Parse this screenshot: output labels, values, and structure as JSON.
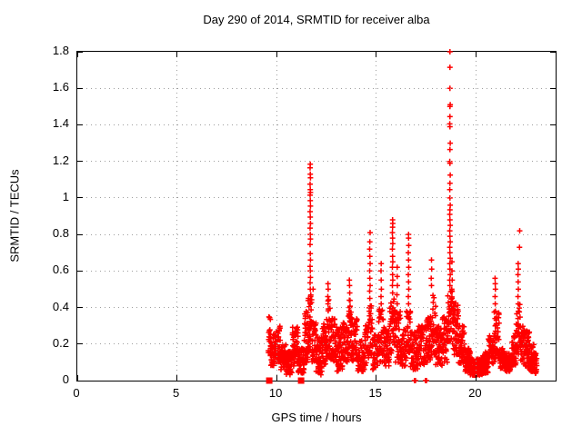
{
  "figure": {
    "background_color": "#ffffff",
    "axis_color": "#000000",
    "grid_color": "#9e9e9e",
    "text_color": "#000000"
  },
  "chart_data": {
    "type": "scatter",
    "title": "Day 290 of 2014, SRMTID for receiver alba",
    "xlabel": "GPS time / hours",
    "ylabel": "SRMTID / TECUs",
    "xlim": [
      0,
      24
    ],
    "ylim": [
      0,
      1.8
    ],
    "grid": true,
    "legend_visible": false,
    "xticks": {
      "values": [
        0,
        5,
        10,
        15,
        20
      ],
      "labels": [
        "0",
        "5",
        "10",
        "15",
        "20"
      ]
    },
    "yticks": {
      "values": [
        0,
        0.2,
        0.4,
        0.6,
        0.8,
        1,
        1.2,
        1.4,
        1.6,
        1.8
      ],
      "labels": [
        "0",
        "0.2",
        "0.4",
        "0.6",
        "0.8",
        "1",
        "1.2",
        "1.4",
        "1.6",
        "1.8"
      ]
    },
    "series": [
      {
        "name": "srmtid",
        "marker": "plus",
        "color": "#ff0000",
        "x_extent": [
          9.58,
          23.06
        ],
        "cloud_segments": [
          [
            9.58,
            9.7,
            0.14,
            0.35,
            14
          ],
          [
            9.68,
            9.92,
            0.08,
            0.27,
            40
          ],
          [
            9.92,
            10.18,
            0.1,
            0.3,
            40
          ],
          [
            10.18,
            10.48,
            0.06,
            0.2,
            42
          ],
          [
            10.48,
            10.78,
            0.03,
            0.16,
            42
          ],
          [
            10.78,
            11.08,
            0.08,
            0.3,
            48
          ],
          [
            11.08,
            11.38,
            0.04,
            0.18,
            42
          ],
          [
            11.38,
            11.58,
            0.1,
            0.4,
            36
          ],
          [
            11.58,
            11.76,
            0.15,
            0.48,
            34
          ],
          [
            11.76,
            11.98,
            0.1,
            0.32,
            32
          ],
          [
            11.98,
            12.28,
            0.03,
            0.24,
            46
          ],
          [
            12.28,
            12.52,
            0.08,
            0.34,
            40
          ],
          [
            12.52,
            12.72,
            0.12,
            0.45,
            34
          ],
          [
            12.72,
            13.02,
            0.1,
            0.34,
            46
          ],
          [
            13.02,
            13.32,
            0.05,
            0.3,
            46
          ],
          [
            13.32,
            13.58,
            0.1,
            0.34,
            40
          ],
          [
            13.58,
            13.78,
            0.12,
            0.45,
            34
          ],
          [
            13.78,
            14.08,
            0.1,
            0.34,
            46
          ],
          [
            14.08,
            14.42,
            0.05,
            0.22,
            50
          ],
          [
            14.42,
            14.62,
            0.08,
            0.3,
            30
          ],
          [
            14.62,
            14.82,
            0.14,
            0.42,
            30
          ],
          [
            14.82,
            15.12,
            0.06,
            0.25,
            46
          ],
          [
            15.12,
            15.38,
            0.1,
            0.4,
            36
          ],
          [
            15.38,
            15.68,
            0.08,
            0.3,
            42
          ],
          [
            15.68,
            15.96,
            0.14,
            0.45,
            40
          ],
          [
            15.96,
            16.22,
            0.1,
            0.38,
            36
          ],
          [
            16.22,
            16.52,
            0.08,
            0.28,
            42
          ],
          [
            16.52,
            16.72,
            0.14,
            0.4,
            30
          ],
          [
            16.72,
            17.12,
            0.06,
            0.28,
            52
          ],
          [
            17.12,
            17.48,
            0.08,
            0.3,
            46
          ],
          [
            17.48,
            17.72,
            0.1,
            0.35,
            36
          ],
          [
            17.72,
            17.98,
            0.14,
            0.48,
            40
          ],
          [
            17.98,
            18.32,
            0.08,
            0.3,
            50
          ],
          [
            18.32,
            18.58,
            0.1,
            0.35,
            36
          ],
          [
            18.58,
            18.82,
            0.2,
            0.5,
            36
          ],
          [
            18.82,
            19.12,
            0.14,
            0.45,
            46
          ],
          [
            19.12,
            19.42,
            0.09,
            0.3,
            46
          ],
          [
            19.42,
            19.72,
            0.05,
            0.18,
            50
          ],
          [
            19.72,
            20.32,
            0.03,
            0.12,
            115
          ],
          [
            20.32,
            20.62,
            0.04,
            0.16,
            60
          ],
          [
            20.62,
            20.92,
            0.07,
            0.25,
            46
          ],
          [
            20.92,
            21.18,
            0.12,
            0.38,
            36
          ],
          [
            21.18,
            21.48,
            0.06,
            0.18,
            46
          ],
          [
            21.48,
            21.78,
            0.05,
            0.15,
            46
          ],
          [
            21.78,
            22.02,
            0.08,
            0.26,
            40
          ],
          [
            22.02,
            22.22,
            0.14,
            0.42,
            30
          ],
          [
            22.22,
            22.48,
            0.09,
            0.3,
            36
          ],
          [
            22.48,
            22.68,
            0.07,
            0.28,
            36
          ],
          [
            22.68,
            22.92,
            0.05,
            0.2,
            40
          ],
          [
            22.92,
            23.06,
            0.04,
            0.15,
            20
          ]
        ],
        "spike_points": [
          [
            11.69,
            0.5
          ],
          [
            11.68,
            0.535
          ],
          [
            11.7,
            0.565
          ],
          [
            11.69,
            0.6
          ],
          [
            11.68,
            0.625
          ],
          [
            11.7,
            0.66
          ],
          [
            11.69,
            0.695
          ],
          [
            11.68,
            0.745
          ],
          [
            11.7,
            0.775
          ],
          [
            11.69,
            0.8
          ],
          [
            11.68,
            0.835
          ],
          [
            11.7,
            0.86
          ],
          [
            11.69,
            0.895
          ],
          [
            11.68,
            0.925
          ],
          [
            11.7,
            0.955
          ],
          [
            11.69,
            0.985
          ],
          [
            11.68,
            1.015
          ],
          [
            11.7,
            1.03
          ],
          [
            11.69,
            1.045
          ],
          [
            11.68,
            1.075
          ],
          [
            11.7,
            1.11
          ],
          [
            11.69,
            1.13
          ],
          [
            11.68,
            1.165
          ],
          [
            11.69,
            1.185
          ],
          [
            11.83,
            0.5
          ],
          [
            11.6,
            0.45
          ],
          [
            12.58,
            0.42
          ],
          [
            12.57,
            0.46
          ],
          [
            12.59,
            0.5
          ],
          [
            12.58,
            0.53
          ],
          [
            13.66,
            0.4
          ],
          [
            13.65,
            0.44
          ],
          [
            13.67,
            0.48
          ],
          [
            13.66,
            0.52
          ],
          [
            13.65,
            0.55
          ],
          [
            14.68,
            0.45
          ],
          [
            14.67,
            0.49
          ],
          [
            14.69,
            0.52
          ],
          [
            14.68,
            0.56
          ],
          [
            14.67,
            0.6
          ],
          [
            14.69,
            0.64
          ],
          [
            14.68,
            0.68
          ],
          [
            14.67,
            0.72
          ],
          [
            14.68,
            0.76
          ],
          [
            14.69,
            0.81
          ],
          [
            15.25,
            0.42
          ],
          [
            15.24,
            0.46
          ],
          [
            15.26,
            0.5
          ],
          [
            15.25,
            0.55
          ],
          [
            15.24,
            0.6
          ],
          [
            15.25,
            0.64
          ],
          [
            15.82,
            0.48
          ],
          [
            15.81,
            0.52
          ],
          [
            15.83,
            0.55
          ],
          [
            15.82,
            0.58
          ],
          [
            15.81,
            0.62
          ],
          [
            15.83,
            0.65
          ],
          [
            15.82,
            0.68
          ],
          [
            15.81,
            0.72
          ],
          [
            15.83,
            0.75
          ],
          [
            15.82,
            0.78
          ],
          [
            15.81,
            0.81
          ],
          [
            15.82,
            0.84
          ],
          [
            15.83,
            0.86
          ],
          [
            15.82,
            0.88
          ],
          [
            16.05,
            0.42
          ],
          [
            16.04,
            0.47
          ],
          [
            16.06,
            0.52
          ],
          [
            16.05,
            0.57
          ],
          [
            16.05,
            0.62
          ],
          [
            16.62,
            0.42
          ],
          [
            16.61,
            0.46
          ],
          [
            16.63,
            0.5
          ],
          [
            16.62,
            0.54
          ],
          [
            16.61,
            0.58
          ],
          [
            16.63,
            0.62
          ],
          [
            16.62,
            0.66
          ],
          [
            16.61,
            0.7
          ],
          [
            16.63,
            0.74
          ],
          [
            16.62,
            0.78
          ],
          [
            16.62,
            0.8
          ],
          [
            17.77,
            0.52
          ],
          [
            17.76,
            0.56
          ],
          [
            17.78,
            0.61
          ],
          [
            17.77,
            0.66
          ],
          [
            18.7,
            0.52
          ],
          [
            18.69,
            0.55
          ],
          [
            18.71,
            0.58
          ],
          [
            18.7,
            0.61
          ],
          [
            18.69,
            0.64
          ],
          [
            18.71,
            0.67
          ],
          [
            18.7,
            0.7
          ],
          [
            18.69,
            0.73
          ],
          [
            18.71,
            0.76
          ],
          [
            18.7,
            0.79
          ],
          [
            18.69,
            0.82
          ],
          [
            18.71,
            0.85
          ],
          [
            18.7,
            0.88
          ],
          [
            18.69,
            0.91
          ],
          [
            18.7,
            0.935
          ],
          [
            18.71,
            0.96
          ],
          [
            18.7,
            1.0
          ],
          [
            18.69,
            1.045
          ],
          [
            18.7,
            1.08
          ],
          [
            18.71,
            1.125
          ],
          [
            18.7,
            1.19
          ],
          [
            18.69,
            1.2
          ],
          [
            18.7,
            1.265
          ],
          [
            18.71,
            1.3
          ],
          [
            18.7,
            1.39
          ],
          [
            18.69,
            1.405
          ],
          [
            18.7,
            1.445
          ],
          [
            18.7,
            1.5
          ],
          [
            18.71,
            1.51
          ],
          [
            18.7,
            1.6
          ],
          [
            18.7,
            1.715
          ],
          [
            18.7,
            1.8
          ],
          [
            18.8,
            0.45
          ],
          [
            18.79,
            0.5
          ],
          [
            18.81,
            0.55
          ],
          [
            18.8,
            0.6
          ],
          [
            18.8,
            0.65
          ],
          [
            20.97,
            0.3
          ],
          [
            20.96,
            0.34
          ],
          [
            20.98,
            0.38
          ],
          [
            20.97,
            0.42
          ],
          [
            20.96,
            0.46
          ],
          [
            20.98,
            0.5
          ],
          [
            20.97,
            0.53
          ],
          [
            20.96,
            0.56
          ],
          [
            22.12,
            0.3
          ],
          [
            22.11,
            0.34
          ],
          [
            22.13,
            0.38
          ],
          [
            22.12,
            0.42
          ],
          [
            22.11,
            0.46
          ],
          [
            22.13,
            0.5
          ],
          [
            22.12,
            0.54
          ],
          [
            22.11,
            0.58
          ],
          [
            22.13,
            0.61
          ],
          [
            22.12,
            0.64
          ],
          [
            22.19,
            0.73
          ],
          [
            22.2,
            0.82
          ]
        ],
        "zero_axis_points": [
          16.92,
          16.97,
          17.47,
          17.52
        ]
      },
      {
        "name": "flagged-zero",
        "marker": "filled-square",
        "color": "#ff0000",
        "x": [
          9.63,
          11.23
        ],
        "y": [
          0,
          0
        ]
      }
    ]
  }
}
